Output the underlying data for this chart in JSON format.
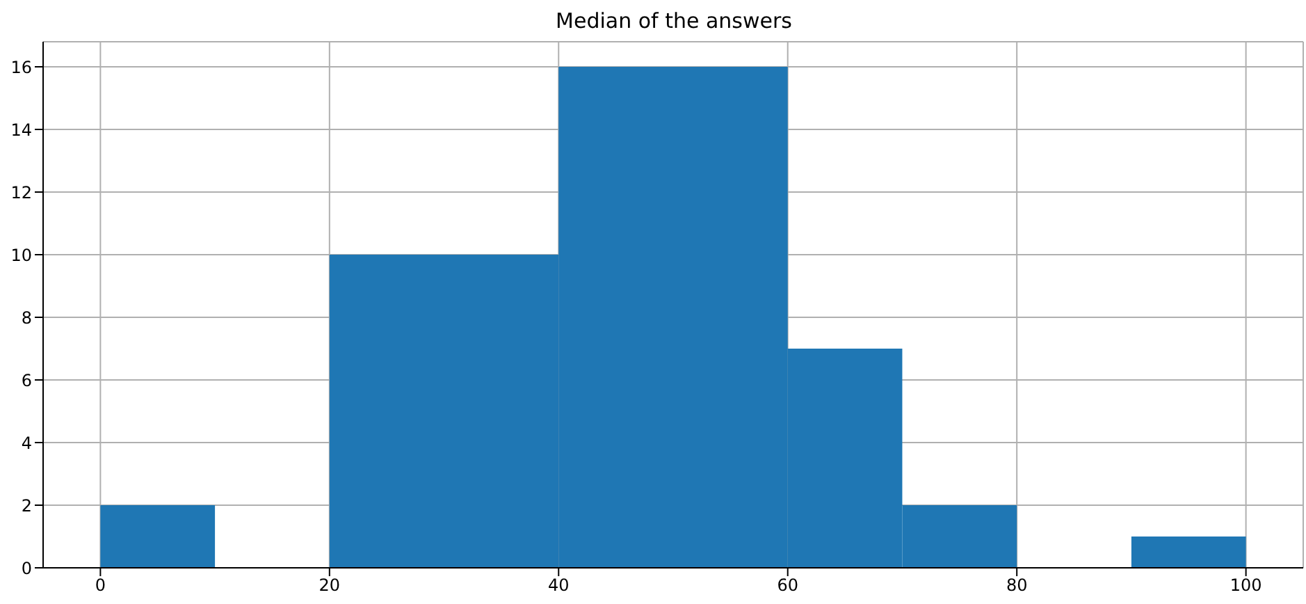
{
  "chart_data": {
    "type": "histogram",
    "title": "Median of the answers",
    "bins": [
      0,
      10,
      20,
      40,
      60,
      70,
      80,
      90,
      100
    ],
    "values": [
      2,
      0,
      10,
      16,
      7,
      2,
      0,
      1
    ],
    "color": "#1f77b4",
    "xlim": [
      -5,
      105
    ],
    "xticks": [
      0,
      20,
      40,
      60,
      80,
      100
    ],
    "ylim": [
      0,
      16.8
    ],
    "yticks": [
      0,
      2,
      4,
      6,
      8,
      10,
      12,
      14,
      16
    ],
    "grid": true
  }
}
